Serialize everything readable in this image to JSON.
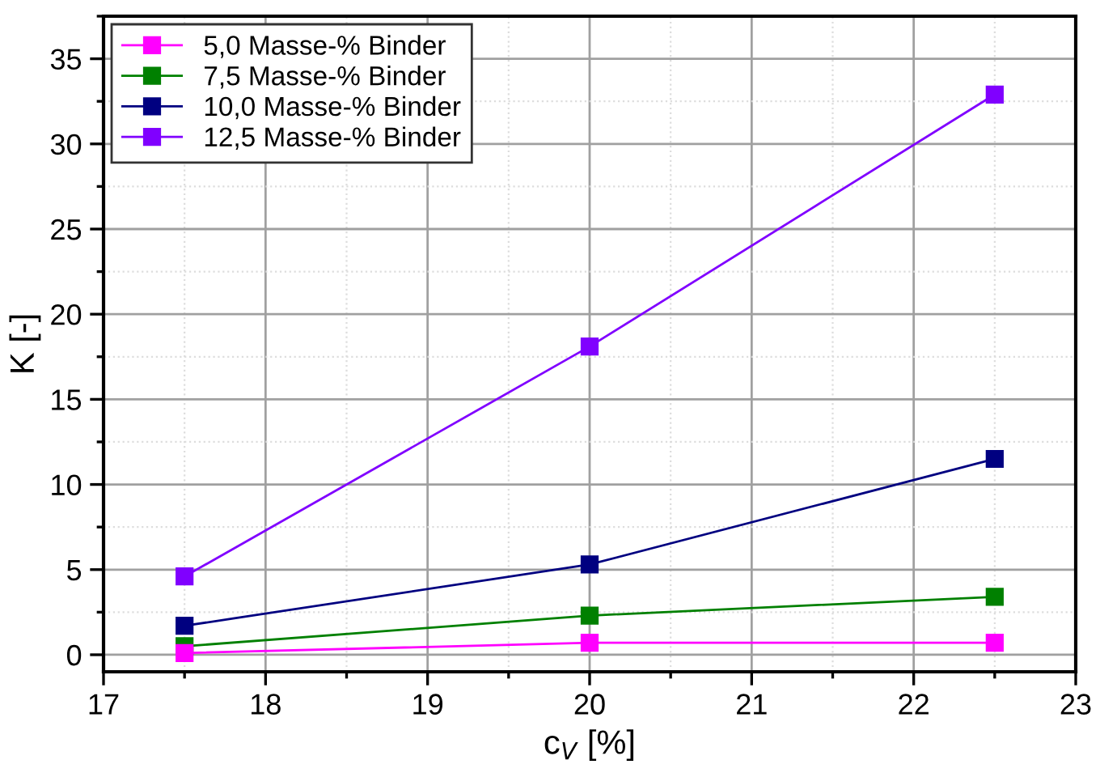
{
  "chart_data": {
    "type": "line",
    "xlabel": "c$_{V}$ [%]",
    "ylabel": "K [-]",
    "x": [
      17.5,
      20,
      22.5
    ],
    "series": [
      {
        "name": "5,0 Masse-% Binder",
        "color": "#ff00ff",
        "values": [
          0.1,
          0.7,
          0.7
        ]
      },
      {
        "name": "7,5 Masse-% Binder",
        "color": "#008000",
        "values": [
          0.5,
          2.3,
          3.4
        ]
      },
      {
        "name": "10,0 Masse-% Binder",
        "color": "#000080",
        "values": [
          1.7,
          5.3,
          11.5
        ]
      },
      {
        "name": "12,5 Masse-% Binder",
        "color": "#8000ff",
        "values": [
          4.6,
          18.1,
          32.9
        ]
      }
    ],
    "xlim": [
      17,
      23
    ],
    "xticks": [
      17,
      18,
      19,
      20,
      21,
      22,
      23
    ],
    "ylim": [
      -1,
      37.5
    ],
    "yticks": [
      0,
      5,
      10,
      15,
      20,
      25,
      30,
      35
    ],
    "grid": true,
    "legend": "top left",
    "marker": "square",
    "line_style": "solid"
  }
}
